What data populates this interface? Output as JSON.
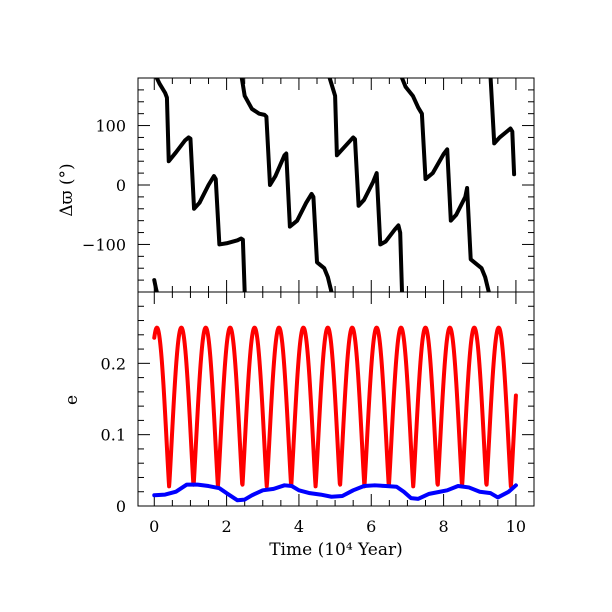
{
  "chart_data": [
    {
      "type": "line",
      "panel": "top",
      "ylabel": "Δϖ (°)",
      "ylim": [
        -180,
        180
      ],
      "xlim": [
        -0.45,
        10.5
      ],
      "yticks": [
        -100,
        0,
        100
      ],
      "ytick_labels": [
        "−100",
        "0",
        "100"
      ],
      "xticks": [
        0,
        2,
        4,
        6,
        8,
        10
      ],
      "grid": false,
      "series": [
        {
          "color": "#000000",
          "points": [
            [
              0.0,
              -160
            ],
            [
              0.05,
              -175
            ],
            [
              0.07,
              -180
            ],
            [
              0.07,
              180
            ],
            [
              0.15,
              170
            ],
            [
              0.3,
              155
            ],
            [
              0.35,
              147
            ],
            [
              0.4,
              40
            ],
            [
              0.6,
              55
            ],
            [
              0.85,
              75
            ],
            [
              0.95,
              80
            ],
            [
              1.0,
              78
            ],
            [
              1.1,
              -40
            ],
            [
              1.25,
              -30
            ],
            [
              1.5,
              0
            ],
            [
              1.65,
              15
            ],
            [
              1.7,
              10
            ],
            [
              1.8,
              -100
            ],
            [
              2.0,
              -98
            ],
            [
              2.3,
              -93
            ],
            [
              2.4,
              -90
            ],
            [
              2.45,
              -92
            ],
            [
              2.5,
              -180
            ],
            [
              2.42,
              180
            ],
            [
              2.5,
              150
            ],
            [
              2.7,
              128
            ],
            [
              2.9,
              120
            ],
            [
              3.05,
              118
            ],
            [
              3.1,
              115
            ],
            [
              3.2,
              0
            ],
            [
              3.35,
              15
            ],
            [
              3.6,
              50
            ],
            [
              3.65,
              53
            ],
            [
              3.75,
              -70
            ],
            [
              3.95,
              -60
            ],
            [
              4.2,
              -30
            ],
            [
              4.35,
              -15
            ],
            [
              4.4,
              -20
            ],
            [
              4.5,
              -130
            ],
            [
              4.7,
              -140
            ],
            [
              4.8,
              -155
            ],
            [
              4.9,
              -180
            ],
            [
              4.85,
              180
            ],
            [
              4.95,
              160
            ],
            [
              5.0,
              150
            ],
            [
              5.05,
              50
            ],
            [
              5.2,
              60
            ],
            [
              5.5,
              80
            ],
            [
              5.55,
              77
            ],
            [
              5.65,
              -35
            ],
            [
              5.8,
              -25
            ],
            [
              6.05,
              5
            ],
            [
              6.15,
              20
            ],
            [
              6.25,
              -100
            ],
            [
              6.4,
              -95
            ],
            [
              6.65,
              -75
            ],
            [
              6.75,
              -68
            ],
            [
              6.8,
              -80
            ],
            [
              6.85,
              -180
            ],
            [
              6.85,
              180
            ],
            [
              6.95,
              165
            ],
            [
              7.15,
              150
            ],
            [
              7.3,
              130
            ],
            [
              7.4,
              120
            ],
            [
              7.5,
              10
            ],
            [
              7.7,
              20
            ],
            [
              8.0,
              52
            ],
            [
              8.1,
              60
            ],
            [
              8.2,
              -60
            ],
            [
              8.35,
              -50
            ],
            [
              8.6,
              -20
            ],
            [
              8.65,
              -5
            ],
            [
              8.75,
              -125
            ],
            [
              8.85,
              -130
            ],
            [
              9.05,
              -140
            ],
            [
              9.15,
              -155
            ],
            [
              9.25,
              -180
            ],
            [
              9.3,
              180
            ],
            [
              9.4,
              70
            ],
            [
              9.55,
              80
            ],
            [
              9.75,
              90
            ],
            [
              9.85,
              95
            ],
            [
              9.9,
              90
            ],
            [
              9.95,
              18
            ]
          ]
        }
      ]
    },
    {
      "type": "line",
      "panel": "bottom",
      "xlabel": "Time (10⁴ Year)",
      "ylabel": "e",
      "ylim": [
        0,
        0.3
      ],
      "xlim": [
        -0.45,
        10.5
      ],
      "yticks": [
        0,
        0.1,
        0.2
      ],
      "ytick_labels": [
        "0",
        "0.1",
        "0.2"
      ],
      "xticks": [
        0,
        2,
        4,
        6,
        8,
        10
      ],
      "xtick_labels": [
        "0",
        "2",
        "4",
        "6",
        "8",
        "10"
      ],
      "grid": false,
      "series": [
        {
          "color": "#ff0000",
          "oscillation": {
            "min": 0.027,
            "max": 0.25,
            "period": 0.675,
            "x_start": 0.0,
            "x_end": 10.0,
            "start_value": 0.225
          }
        },
        {
          "color": "#0000ff",
          "points": [
            [
              0.0,
              0.015
            ],
            [
              0.3,
              0.016
            ],
            [
              0.6,
              0.02
            ],
            [
              0.9,
              0.03
            ],
            [
              1.2,
              0.03
            ],
            [
              1.5,
              0.028
            ],
            [
              1.8,
              0.025
            ],
            [
              2.0,
              0.018
            ],
            [
              2.3,
              0.008
            ],
            [
              2.5,
              0.009
            ],
            [
              2.7,
              0.015
            ],
            [
              3.0,
              0.022
            ],
            [
              3.3,
              0.024
            ],
            [
              3.6,
              0.029
            ],
            [
              3.8,
              0.028
            ],
            [
              4.0,
              0.022
            ],
            [
              4.3,
              0.018
            ],
            [
              4.6,
              0.016
            ],
            [
              4.9,
              0.013
            ],
            [
              5.2,
              0.014
            ],
            [
              5.5,
              0.022
            ],
            [
              5.8,
              0.028
            ],
            [
              6.1,
              0.029
            ],
            [
              6.4,
              0.028
            ],
            [
              6.7,
              0.027
            ],
            [
              6.9,
              0.02
            ],
            [
              7.1,
              0.011
            ],
            [
              7.3,
              0.01
            ],
            [
              7.6,
              0.017
            ],
            [
              7.9,
              0.02
            ],
            [
              8.1,
              0.022
            ],
            [
              8.4,
              0.028
            ],
            [
              8.7,
              0.026
            ],
            [
              9.0,
              0.02
            ],
            [
              9.3,
              0.018
            ],
            [
              9.5,
              0.012
            ],
            [
              9.8,
              0.02
            ],
            [
              10.0,
              0.029
            ]
          ]
        }
      ]
    }
  ]
}
